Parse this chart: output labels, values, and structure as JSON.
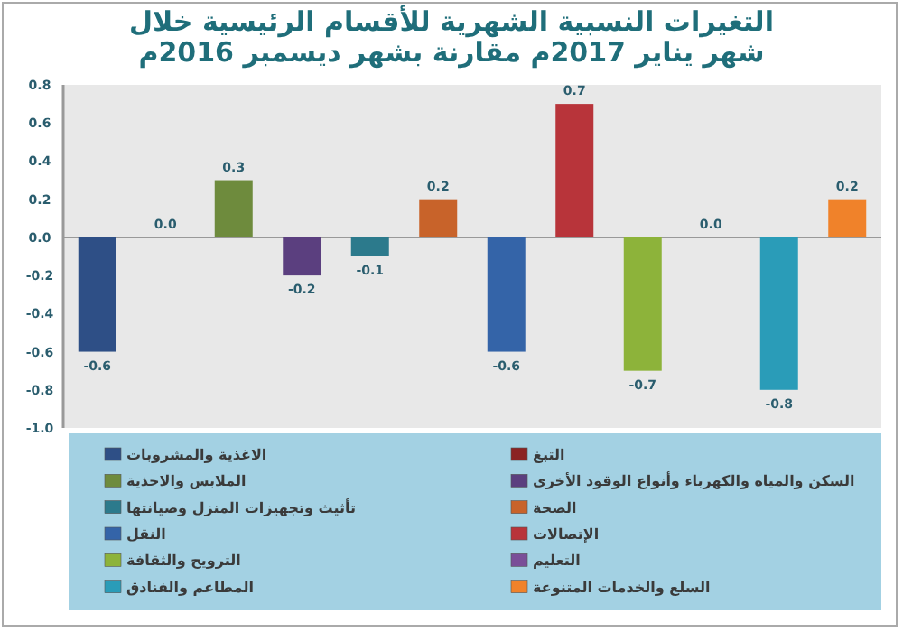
{
  "chart_data": {
    "type": "bar",
    "title": "التغيرات النسبية الشهرية للأقسام الرئيسية خلال شهر يناير 2017م مقارنة بشهر ديسمبر 2016م",
    "categories": [
      null,
      null,
      null,
      null,
      null,
      null,
      null,
      null,
      null,
      null,
      null,
      null
    ],
    "series": [
      {
        "name": "الاغذية والمشروبات",
        "color": "#2e4f86",
        "values": [
          -0.6,
          null,
          null,
          null,
          null,
          null,
          null,
          null,
          null,
          null,
          null,
          null
        ],
        "value_labels": [
          "-0.6",
          null,
          null,
          null,
          null,
          null,
          null,
          null,
          null,
          null,
          null,
          null
        ]
      },
      {
        "name": "التبغ",
        "color": "#8b2323",
        "values": [
          null,
          0.0,
          null,
          null,
          null,
          null,
          null,
          null,
          null,
          null,
          null,
          null
        ],
        "value_labels": [
          null,
          "0.0",
          null,
          null,
          null,
          null,
          null,
          null,
          null,
          null,
          null,
          null
        ]
      },
      {
        "name": "الملابس والاحذية",
        "color": "#6e8b3d",
        "values": [
          null,
          null,
          0.3,
          null,
          null,
          null,
          null,
          null,
          null,
          null,
          null,
          null
        ],
        "value_labels": [
          null,
          null,
          "0.3",
          null,
          null,
          null,
          null,
          null,
          null,
          null,
          null,
          null
        ]
      },
      {
        "name": "السكن والمياه والكهرباء وأنواع الوقود الأخرى",
        "color": "#5b3f7f",
        "values": [
          null,
          null,
          null,
          -0.2,
          null,
          null,
          null,
          null,
          null,
          null,
          null,
          null
        ],
        "value_labels": [
          null,
          null,
          null,
          "-0.2",
          null,
          null,
          null,
          null,
          null,
          null,
          null,
          null
        ]
      },
      {
        "name": "تأثيث وتجهيزات المنزل وصيانتها",
        "color": "#2c7a8c",
        "values": [
          null,
          null,
          null,
          null,
          -0.1,
          null,
          null,
          null,
          null,
          null,
          null,
          null
        ],
        "value_labels": [
          null,
          null,
          null,
          null,
          "-0.1",
          null,
          null,
          null,
          null,
          null,
          null,
          null
        ]
      },
      {
        "name": "الصحة",
        "color": "#c8632a",
        "values": [
          null,
          null,
          null,
          null,
          null,
          0.2,
          null,
          null,
          null,
          null,
          null,
          null
        ],
        "value_labels": [
          null,
          null,
          null,
          null,
          null,
          "0.2",
          null,
          null,
          null,
          null,
          null,
          null
        ]
      },
      {
        "name": "النقل",
        "color": "#3464a8",
        "values": [
          null,
          null,
          null,
          null,
          null,
          null,
          -0.6,
          null,
          null,
          null,
          null,
          null
        ],
        "value_labels": [
          null,
          null,
          null,
          null,
          null,
          null,
          "-0.6",
          null,
          null,
          null,
          null,
          null
        ]
      },
      {
        "name": "الإتصالات",
        "color": "#b8343a",
        "values": [
          null,
          null,
          null,
          null,
          null,
          null,
          null,
          0.7,
          null,
          null,
          null,
          null
        ],
        "value_labels": [
          null,
          null,
          null,
          null,
          null,
          null,
          null,
          "0.7",
          null,
          null,
          null,
          null
        ]
      },
      {
        "name": "الترويح والثقافة",
        "color": "#8db33a",
        "values": [
          null,
          null,
          null,
          null,
          null,
          null,
          null,
          null,
          -0.7,
          null,
          null,
          null
        ],
        "value_labels": [
          null,
          null,
          null,
          null,
          null,
          null,
          null,
          null,
          "-0.7",
          null,
          null,
          null
        ]
      },
      {
        "name": "التعليم",
        "color": "#7a4e98",
        "values": [
          null,
          null,
          null,
          null,
          null,
          null,
          null,
          null,
          null,
          0.0,
          null,
          null
        ],
        "value_labels": [
          null,
          null,
          null,
          null,
          null,
          null,
          null,
          null,
          null,
          "0.0",
          null,
          null
        ]
      },
      {
        "name": "المطاعم والفنادق",
        "color": "#2a9cb8",
        "values": [
          null,
          null,
          null,
          null,
          null,
          null,
          null,
          null,
          null,
          null,
          -0.8,
          null
        ],
        "value_labels": [
          null,
          null,
          null,
          null,
          null,
          null,
          null,
          null,
          null,
          null,
          "-0.8",
          null
        ]
      },
      {
        "name": "السلع والخدمات المتنوعة",
        "color": "#f0822a",
        "values": [
          null,
          null,
          null,
          null,
          null,
          null,
          null,
          null,
          null,
          null,
          null,
          0.2
        ],
        "value_labels": [
          null,
          null,
          null,
          null,
          null,
          null,
          null,
          null,
          null,
          null,
          null,
          "0.2"
        ]
      }
    ],
    "ylim": [
      -1.0,
      0.8
    ],
    "yticks": [
      {
        "value": -1.0,
        "label": "-1.0"
      },
      {
        "value": -0.8,
        "label": "-0.8"
      },
      {
        "value": -0.6,
        "label": "-0.6"
      },
      {
        "value": -0.4,
        "label": "-0.4"
      },
      {
        "value": -0.2,
        "label": "-0.2"
      },
      {
        "value": 0.0,
        "label": "0.0"
      },
      {
        "value": 0.2,
        "label": "0.2"
      },
      {
        "value": 0.4,
        "label": "0.4"
      },
      {
        "value": 0.6,
        "label": "0.6"
      },
      {
        "value": 0.8,
        "label": "0.8"
      }
    ],
    "legend": "bottom",
    "tick_labels": "y"
  }
}
